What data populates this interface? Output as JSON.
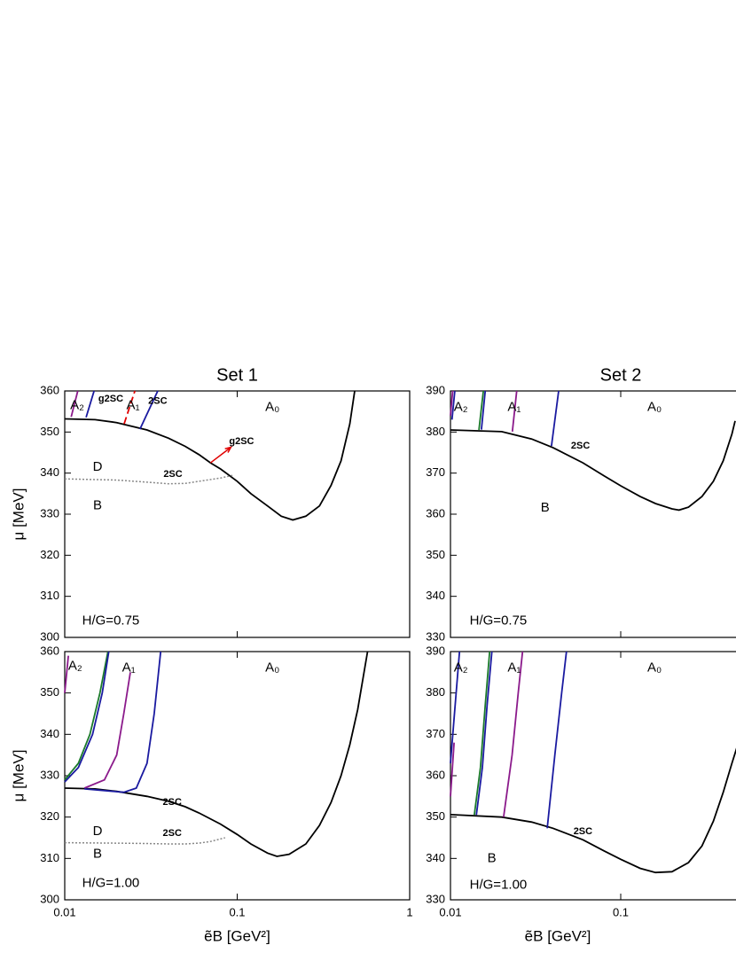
{
  "chart_data": [
    {
      "type": "line",
      "title": "Set 1",
      "ylabel": "μ [MeV]",
      "xscale": "log",
      "xlim": [
        0.01,
        1
      ],
      "xticks": [
        0.01,
        0.1,
        1
      ],
      "xtick_labels": false,
      "ylim": [
        300,
        360
      ],
      "yticks": [
        300,
        310,
        320,
        330,
        340,
        350,
        360
      ],
      "series": [
        {
          "color": "#000000",
          "style": "solid",
          "x": [
            0.01,
            0.015,
            0.02,
            0.03,
            0.04,
            0.05,
            0.06,
            0.07,
            0.08,
            0.1,
            0.12,
            0.15,
            0.18,
            0.21,
            0.25,
            0.3,
            0.35,
            0.4,
            0.45,
            0.48
          ],
          "values": [
            353.2,
            353,
            352.3,
            350.5,
            348.5,
            346.5,
            344.5,
            342.5,
            341,
            338,
            335,
            332,
            329.5,
            328.6,
            329.5,
            332,
            337,
            343,
            352,
            360
          ]
        },
        {
          "color": "#888888",
          "style": "dotted",
          "x": [
            0.01,
            0.02,
            0.03,
            0.04,
            0.05,
            0.06,
            0.08,
            0.095
          ],
          "values": [
            338.6,
            338.3,
            337.8,
            337.4,
            337.5,
            338,
            338.8,
            339.5
          ]
        },
        {
          "color": "#8b1a8b",
          "style": "solid",
          "x": [
            0.0109,
            0.0119
          ],
          "values": [
            353.7,
            360
          ]
        },
        {
          "color": "#1a1aa0",
          "style": "solid",
          "x": [
            0.0133,
            0.0148
          ],
          "values": [
            353.6,
            360
          ]
        },
        {
          "color": "#e00000",
          "style": "dashed",
          "x": [
            0.0221,
            0.0255
          ],
          "values": [
            352,
            360
          ]
        },
        {
          "color": "#1a1aa0",
          "style": "solid",
          "x": [
            0.0273,
            0.0346
          ],
          "values": [
            350.7,
            360
          ]
        }
      ],
      "annotations": [
        {
          "text": "A₂",
          "x": 0.0118,
          "y": 356.4
        },
        {
          "text": "g2SC",
          "x": 0.0185,
          "y": 358,
          "color": "#e00000"
        },
        {
          "text": "A₁",
          "x": 0.0249,
          "y": 356.4
        },
        {
          "text": "2SC",
          "x": 0.0346,
          "y": 357.5,
          "color": "#e00000"
        },
        {
          "text": "A₀",
          "x": 0.16,
          "y": 356
        },
        {
          "text": "g2SC",
          "x": 0.106,
          "y": 347.7,
          "color": "#e00000",
          "arrow": [
            0.07,
            342.5,
            0.092,
            346.3
          ]
        },
        {
          "text": "2SC",
          "x": 0.0424,
          "y": 339.7,
          "color": "#e00000"
        },
        {
          "text": "D",
          "x": 0.0155,
          "y": 341.4
        },
        {
          "text": "B",
          "x": 0.0155,
          "y": 332
        },
        {
          "text": "H/G=0.75",
          "x": 0.0185,
          "y": 304
        }
      ]
    },
    {
      "type": "line",
      "title": "Set 2",
      "xscale": "log",
      "xlim": [
        0.01,
        1
      ],
      "xticks": [
        0.01,
        0.1
      ],
      "xtick_labels": false,
      "ylim": [
        330,
        390
      ],
      "yticks": [
        330,
        340,
        350,
        360,
        370,
        380,
        390
      ],
      "series": [
        {
          "color": "#000000",
          "style": "solid",
          "x": [
            0.01,
            0.02,
            0.03,
            0.04,
            0.06,
            0.08,
            0.1,
            0.13,
            0.16,
            0.2,
            0.22,
            0.25,
            0.3,
            0.35,
            0.4,
            0.45,
            0.47
          ],
          "values": [
            380.5,
            380.1,
            378.3,
            376.2,
            372.5,
            369.3,
            366.9,
            364.3,
            362.6,
            361.3,
            361,
            361.7,
            364.3,
            368,
            373,
            379.5,
            382.7
          ]
        },
        {
          "color": "#8b1a8b",
          "style": "solid",
          "x": [
            0.01,
            0.0103
          ],
          "values": [
            384,
            390
          ]
        },
        {
          "color": "#1a1aa0",
          "style": "solid",
          "x": [
            0.0102,
            0.0106
          ],
          "values": [
            383,
            390
          ]
        },
        {
          "color": "#1a7a2a",
          "style": "solid",
          "x": [
            0.0147,
            0.0156
          ],
          "values": [
            380.5,
            390
          ]
        },
        {
          "color": "#1a1aa0",
          "style": "solid",
          "x": [
            0.0152,
            0.016
          ],
          "values": [
            380.6,
            390
          ]
        },
        {
          "color": "#8b1a8b",
          "style": "solid",
          "x": [
            0.0231,
            0.0245
          ],
          "values": [
            380.1,
            390
          ]
        },
        {
          "color": "#1a1aa0",
          "style": "solid",
          "x": [
            0.0392,
            0.0432
          ],
          "values": [
            376.6,
            390
          ]
        }
      ],
      "annotations": [
        {
          "text": "A₂",
          "x": 0.0115,
          "y": 386
        },
        {
          "text": "A₁",
          "x": 0.0237,
          "y": 386
        },
        {
          "text": "A₀",
          "x": 0.158,
          "y": 386
        },
        {
          "text": "2SC",
          "x": 0.058,
          "y": 376.6,
          "color": "#e00000"
        },
        {
          "text": "B",
          "x": 0.036,
          "y": 361.5
        },
        {
          "text": "H/G=0.75",
          "x": 0.0191,
          "y": 334
        }
      ]
    },
    {
      "type": "line",
      "ylabel": "μ [MeV]",
      "xlabel": "ẽB [GeV²]",
      "xscale": "log",
      "xlim": [
        0.01,
        1
      ],
      "xticks": [
        0.01,
        0.1,
        1
      ],
      "xtick_labels": true,
      "ylim": [
        300,
        360
      ],
      "yticks": [
        300,
        310,
        320,
        330,
        340,
        350,
        360
      ],
      "series": [
        {
          "color": "#000000",
          "style": "solid",
          "x": [
            0.01,
            0.015,
            0.02,
            0.03,
            0.04,
            0.05,
            0.06,
            0.08,
            0.1,
            0.12,
            0.15,
            0.17,
            0.2,
            0.25,
            0.3,
            0.35,
            0.4,
            0.45,
            0.5,
            0.57
          ],
          "values": [
            327,
            326.8,
            326.2,
            325,
            323.8,
            322.5,
            321,
            318.3,
            315.8,
            313.5,
            311.3,
            310.5,
            311,
            313.5,
            318,
            323.5,
            330,
            337.5,
            346,
            360
          ]
        },
        {
          "color": "#888888",
          "style": "dotted",
          "x": [
            0.01,
            0.02,
            0.03,
            0.04,
            0.05,
            0.06,
            0.07,
            0.085
          ],
          "values": [
            313.8,
            313.7,
            313.6,
            313.5,
            313.5,
            313.7,
            314.1,
            315
          ]
        },
        {
          "color": "#8b1a8b",
          "style": "solid",
          "x": [
            0.01,
            0.0105
          ],
          "values": [
            350,
            359
          ]
        },
        {
          "color": "#1a7a2a",
          "style": "solid",
          "x": [
            0.01,
            0.012,
            0.014,
            0.016,
            0.0178
          ],
          "values": [
            329,
            333,
            340,
            350,
            360
          ]
        },
        {
          "color": "#1a1aa0",
          "style": "solid",
          "x": [
            0.01,
            0.012,
            0.0145,
            0.0165,
            0.018
          ],
          "values": [
            328.5,
            332,
            340,
            350,
            360
          ]
        },
        {
          "color": "#8b1a8b",
          "style": "solid",
          "x": [
            0.013,
            0.017,
            0.02,
            0.022,
            0.024
          ],
          "values": [
            327,
            329,
            335,
            345,
            355
          ]
        },
        {
          "color": "#1a1aa0",
          "style": "solid",
          "x": [
            0.013,
            0.022,
            0.026,
            0.03,
            0.033,
            0.036
          ],
          "values": [
            326.8,
            326,
            327,
            333,
            345,
            360
          ]
        }
      ],
      "annotations": [
        {
          "text": "A₂",
          "x": 0.0115,
          "y": 356.5
        },
        {
          "text": "A₁",
          "x": 0.0235,
          "y": 356
        },
        {
          "text": "A₀",
          "x": 0.16,
          "y": 356
        },
        {
          "text": "2SC",
          "x": 0.042,
          "y": 323.5,
          "color": "#e00000"
        },
        {
          "text": "2SC",
          "x": 0.042,
          "y": 316,
          "color": "#e00000"
        },
        {
          "text": "D",
          "x": 0.0155,
          "y": 316.5
        },
        {
          "text": "B",
          "x": 0.0155,
          "y": 311
        },
        {
          "text": "H/G=1.00",
          "x": 0.0185,
          "y": 304
        }
      ]
    },
    {
      "type": "line",
      "xlabel": "ẽB [GeV²]",
      "xscale": "log",
      "xlim": [
        0.01,
        1
      ],
      "xticks": [
        0.01,
        0.1
      ],
      "xtick_labels": true,
      "ylim": [
        330,
        390
      ],
      "yticks": [
        330,
        340,
        350,
        360,
        370,
        380,
        390
      ],
      "series": [
        {
          "color": "#000000",
          "style": "solid",
          "x": [
            0.01,
            0.02,
            0.03,
            0.04,
            0.06,
            0.08,
            0.1,
            0.13,
            0.16,
            0.2,
            0.25,
            0.3,
            0.35,
            0.4,
            0.45,
            0.5
          ],
          "values": [
            350.6,
            350,
            348.8,
            347.3,
            344.5,
            341.8,
            339.8,
            337.6,
            336.6,
            336.8,
            339,
            343,
            349,
            356,
            363,
            369
          ]
        },
        {
          "color": "#1a1aa0",
          "style": "solid",
          "x": [
            0.01,
            0.0108,
            0.0113
          ],
          "values": [
            363,
            380,
            390
          ]
        },
        {
          "color": "#8b1a8b",
          "style": "solid",
          "x": [
            0.01,
            0.0105
          ],
          "values": [
            355,
            368
          ]
        },
        {
          "color": "#1a7a2a",
          "style": "solid",
          "x": [
            0.0138,
            0.015,
            0.016,
            0.017
          ],
          "values": [
            350.5,
            362,
            377,
            390
          ]
        },
        {
          "color": "#1a1aa0",
          "style": "solid",
          "x": [
            0.0142,
            0.0154,
            0.0164,
            0.0175
          ],
          "values": [
            350.5,
            362,
            377,
            390
          ]
        },
        {
          "color": "#8b1a8b",
          "style": "solid",
          "x": [
            0.0205,
            0.023,
            0.025,
            0.0265
          ],
          "values": [
            350,
            365,
            380,
            390
          ]
        },
        {
          "color": "#1a1aa0",
          "style": "solid",
          "x": [
            0.037,
            0.041,
            0.045,
            0.048
          ],
          "values": [
            347.3,
            365,
            380,
            390
          ]
        }
      ],
      "annotations": [
        {
          "text": "A₂",
          "x": 0.0115,
          "y": 386
        },
        {
          "text": "A₁",
          "x": 0.0237,
          "y": 386
        },
        {
          "text": "A₀",
          "x": 0.158,
          "y": 386
        },
        {
          "text": "2SC",
          "x": 0.06,
          "y": 346.5,
          "color": "#e00000"
        },
        {
          "text": "B",
          "x": 0.0175,
          "y": 340
        },
        {
          "text": "H/G=1.00",
          "x": 0.0191,
          "y": 333.5
        }
      ]
    }
  ]
}
